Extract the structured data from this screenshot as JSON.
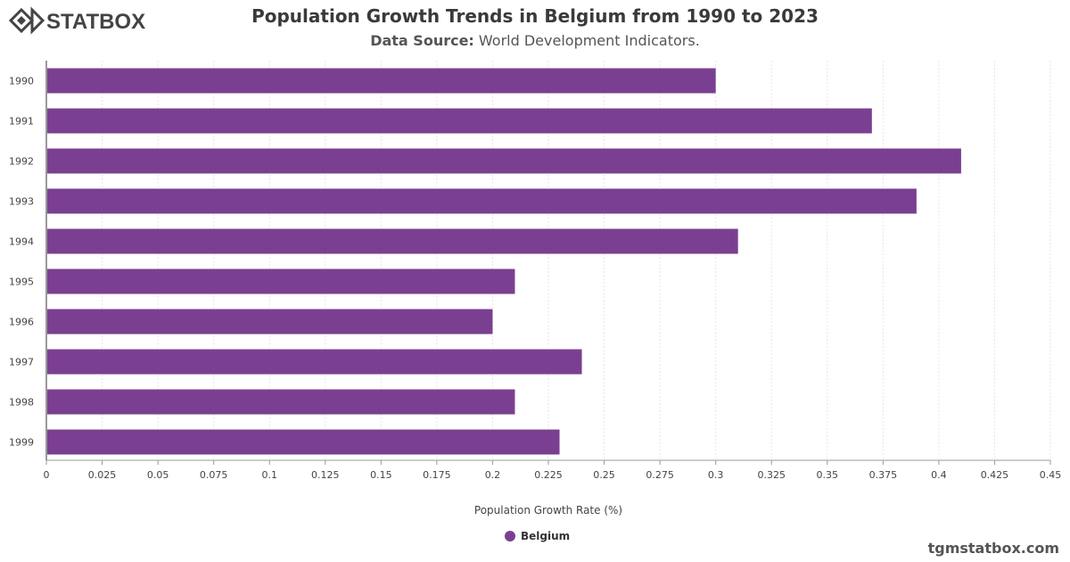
{
  "header": {
    "title": "Population Growth Trends in Belgium from 1990 to 2023",
    "subtitle_prefix": "Data Source:",
    "subtitle_text": " World Development Indicators."
  },
  "logo": {
    "text": "STATBOX",
    "icon": "statbox-diamond-icon"
  },
  "footer": {
    "site": "tgmstatbox.com"
  },
  "colors": {
    "bar": "#7b3f91",
    "grid": "#e6e6e6",
    "axis": "#333333"
  },
  "chart_data": {
    "type": "bar",
    "orientation": "horizontal",
    "categories": [
      "1990",
      "1991",
      "1992",
      "1993",
      "1994",
      "1995",
      "1996",
      "1997",
      "1998",
      "1999"
    ],
    "series": [
      {
        "name": "Belgium",
        "values": [
          0.3,
          0.37,
          0.41,
          0.39,
          0.31,
          0.21,
          0.2,
          0.24,
          0.21,
          0.23
        ]
      }
    ],
    "xlabel": "Population Growth Rate (%)",
    "ylabel": "",
    "xlim": [
      0,
      0.45
    ],
    "xticks": [
      "0",
      "0.025",
      "0.05",
      "0.075",
      "0.1",
      "0.125",
      "0.15",
      "0.175",
      "0.2",
      "0.225",
      "0.25",
      "0.275",
      "0.3",
      "0.325",
      "0.35",
      "0.375",
      "0.4",
      "0.425",
      "0.45"
    ],
    "grid": true,
    "legend_position": "bottom-center"
  }
}
